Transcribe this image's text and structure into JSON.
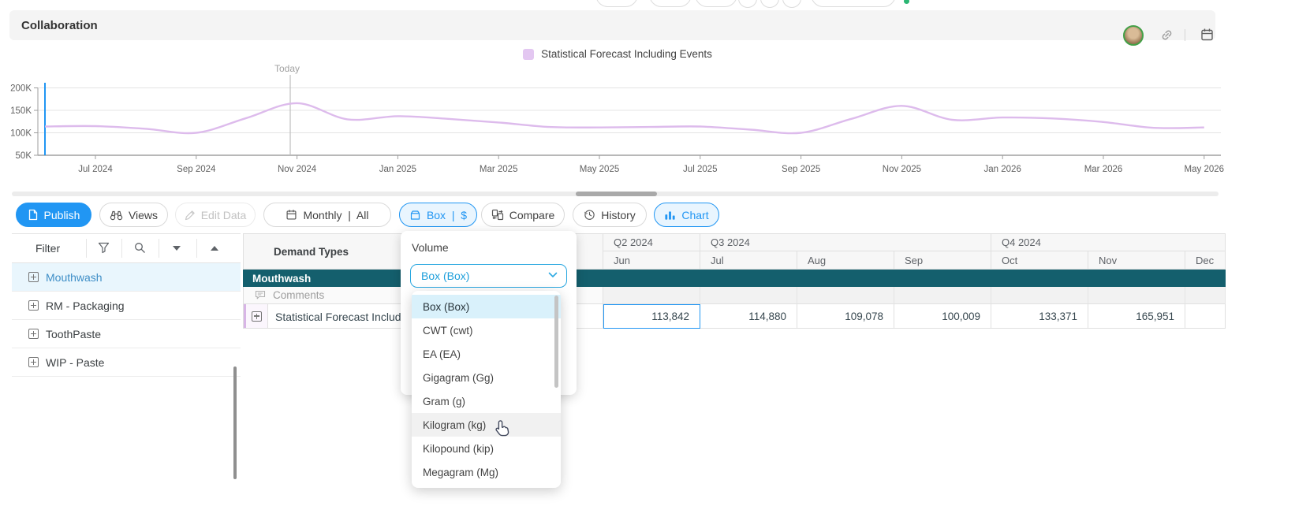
{
  "topbar": {
    "title": "Collaboration"
  },
  "legend": {
    "label": "Statistical Forecast Including Events",
    "swatch_color": "#E3C7F1"
  },
  "chart_data": {
    "type": "line",
    "title": "",
    "series": [
      {
        "name": "Statistical Forecast Including Events",
        "color": "#DDBBEC",
        "x": [
          "Jun 2024",
          "Jul 2024",
          "Aug 2024",
          "Sep 2024",
          "Oct 2024",
          "Nov 2024",
          "Dec 2024",
          "Jan 2025",
          "Feb 2025",
          "Mar 2025",
          "Apr 2025",
          "May 2025",
          "Jun 2025",
          "Jul 2025",
          "Aug 2025",
          "Sep 2025",
          "Oct 2025",
          "Nov 2025",
          "Dec 2025",
          "Jan 2026",
          "Feb 2026",
          "Mar 2026",
          "Apr 2026",
          "May 2026"
        ],
        "values_thousands": [
          114,
          115,
          109,
          100,
          133,
          166,
          130,
          137,
          131,
          123,
          113,
          112,
          113,
          114,
          107,
          100,
          131,
          160,
          129,
          134,
          132,
          124,
          111,
          112
        ]
      }
    ],
    "y_ticks": [
      "200K",
      "150K",
      "100K",
      "50K"
    ],
    "y_range_thousands": [
      50,
      200
    ],
    "x_tick_labels": [
      "Jul 2024",
      "Sep 2024",
      "Nov 2024",
      "Jan 2025",
      "Mar 2025",
      "May 2025",
      "Jul 2025",
      "Sep 2025",
      "Nov 2025",
      "Jan 2026",
      "Mar 2026",
      "May 2026"
    ],
    "annotations": {
      "today_label": "Today"
    },
    "grid": true,
    "legend_position": "top-center"
  },
  "toolbar": {
    "buttons": [
      {
        "id": "publish",
        "label": "Publish",
        "icon": "document-icon",
        "state": "primary"
      },
      {
        "id": "views",
        "label": "Views",
        "icon": "binoculars-icon",
        "state": "default"
      },
      {
        "id": "edit-data",
        "label": "Edit Data",
        "icon": "pencil-icon",
        "state": "disabled"
      },
      {
        "id": "monthly-all",
        "label": "Monthly  |  All",
        "icon": "calendar-icon",
        "state": "default"
      },
      {
        "id": "unit-currency",
        "label": "Box  |  $",
        "icon": "box-icon",
        "state": "active"
      },
      {
        "id": "compare",
        "label": "Compare",
        "icon": "compare-icon",
        "state": "default"
      },
      {
        "id": "history",
        "label": "History",
        "icon": "history-icon",
        "state": "default"
      },
      {
        "id": "chart",
        "label": "Chart",
        "icon": "bar-chart-icon",
        "state": "active"
      }
    ]
  },
  "sidebar": {
    "filter_label": "Filter",
    "items": [
      {
        "label": "Mouthwash",
        "selected": true
      },
      {
        "label": "RM - Packaging",
        "selected": false
      },
      {
        "label": "ToothPaste",
        "selected": false
      },
      {
        "label": "WIP - Paste",
        "selected": false
      }
    ]
  },
  "table": {
    "corner_header": "Demand Types",
    "quarter_headers": [
      {
        "label": "Q2 2024",
        "cols": 1
      },
      {
        "label": "Q3 2024",
        "cols": 3
      },
      {
        "label": "Q4 2024",
        "cols": 3
      }
    ],
    "month_headers": [
      "Jun",
      "Jul",
      "Aug",
      "Sep",
      "Oct",
      "Nov",
      "Dec"
    ],
    "group_row_label": "Mouthwash",
    "comments_row_label": "Comments",
    "data_row_label": "Statistical Forecast Including Events",
    "values": [
      "113,842",
      "114,880",
      "109,078",
      "100,009",
      "133,371",
      "165,951",
      ""
    ],
    "selected_cell": {
      "row": "Statistical Forecast Including Events",
      "month": "Jun"
    }
  },
  "unit_dropdown": {
    "section_label": "Volume",
    "selected_value": "Box (Box)",
    "options": [
      "Box (Box)",
      "CWT (cwt)",
      "EA (EA)",
      "Gigagram (Gg)",
      "Gram (g)",
      "Kilogram (kg)",
      "Kilopound (kip)",
      "Megagram (Mg)"
    ],
    "highlighted_option": "Box (Box)",
    "hovered_option": "Kilogram (kg)"
  },
  "colors": {
    "primary_blue": "#2196F3",
    "active_button_bg": "#E9F5FE",
    "select_blue": "#1E9FDB",
    "teal_group_row": "#145F6D",
    "option_highlight_bg": "#D9F1FB",
    "selected_item_text": "#3E8EC7",
    "forecast_line": "#DDBBEC",
    "today_line": "#BDBDBD"
  }
}
